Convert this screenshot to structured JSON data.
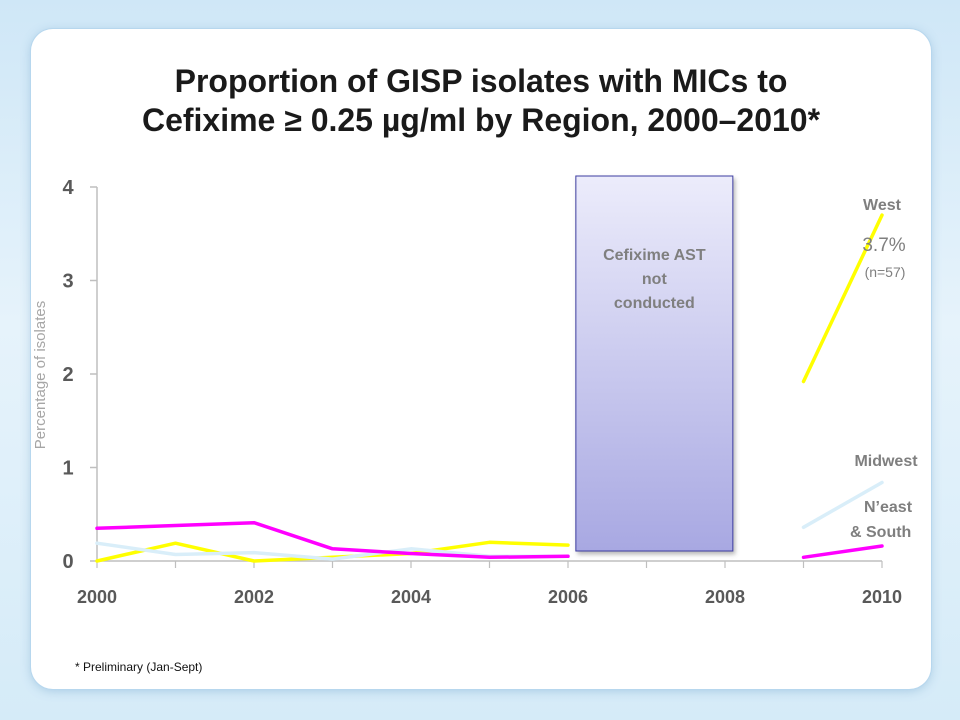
{
  "title_lines": [
    "Proportion of GISP isolates with MICs to",
    "Cefixime ≥ 0.25 µg/ml by Region, 2000–2010*"
  ],
  "footnote": "* Preliminary (Jan-Sept)",
  "chart_data": {
    "type": "line",
    "ylabel": "Percentage of isolates",
    "xlim": [
      2000,
      2010
    ],
    "ylim": [
      0,
      4
    ],
    "x_ticks": [
      "2000",
      "2002",
      "2004",
      "2006",
      "2008",
      "2010"
    ],
    "y_ticks": [
      "0",
      "1",
      "2",
      "3",
      "4"
    ],
    "gap_annotation": {
      "from": 2006.1,
      "to": 2008.1,
      "lines": [
        "Cefixime AST",
        "not",
        "conducted"
      ]
    },
    "series": [
      {
        "name": "West",
        "color": "#ffff00",
        "label_color": "#7f7f7f",
        "value_label": "3.7%",
        "n_label": "(n=57)",
        "segments": [
          [
            [
              2000,
              0.0
            ],
            [
              2001,
              0.19
            ],
            [
              2002,
              0.0
            ],
            [
              2003,
              0.04
            ],
            [
              2004,
              0.08
            ],
            [
              2005,
              0.2
            ],
            [
              2006,
              0.17
            ]
          ],
          [
            [
              2009,
              1.92
            ],
            [
              2010,
              3.7
            ]
          ]
        ]
      },
      {
        "name": "Midwest",
        "color": "#d9eef9",
        "label_color": "#7f7f7f",
        "segments": [
          [
            [
              2000,
              0.19
            ],
            [
              2001,
              0.07
            ],
            [
              2002,
              0.09
            ],
            [
              2003,
              0.02
            ],
            [
              2004,
              0.13
            ],
            [
              2005,
              0.05
            ],
            [
              2006,
              0.05
            ]
          ],
          [
            [
              2009,
              0.36
            ],
            [
              2010,
              0.84
            ]
          ]
        ]
      },
      {
        "name": "N’east\n& South",
        "color": "#ff00ff",
        "label_color": "#7f7f7f",
        "segments": [
          [
            [
              2000,
              0.35
            ],
            [
              2001,
              0.38
            ],
            [
              2002,
              0.41
            ],
            [
              2003,
              0.13
            ],
            [
              2004,
              0.08
            ],
            [
              2005,
              0.04
            ],
            [
              2006,
              0.05
            ]
          ],
          [
            [
              2009,
              0.04
            ],
            [
              2010,
              0.16
            ]
          ]
        ]
      }
    ]
  }
}
